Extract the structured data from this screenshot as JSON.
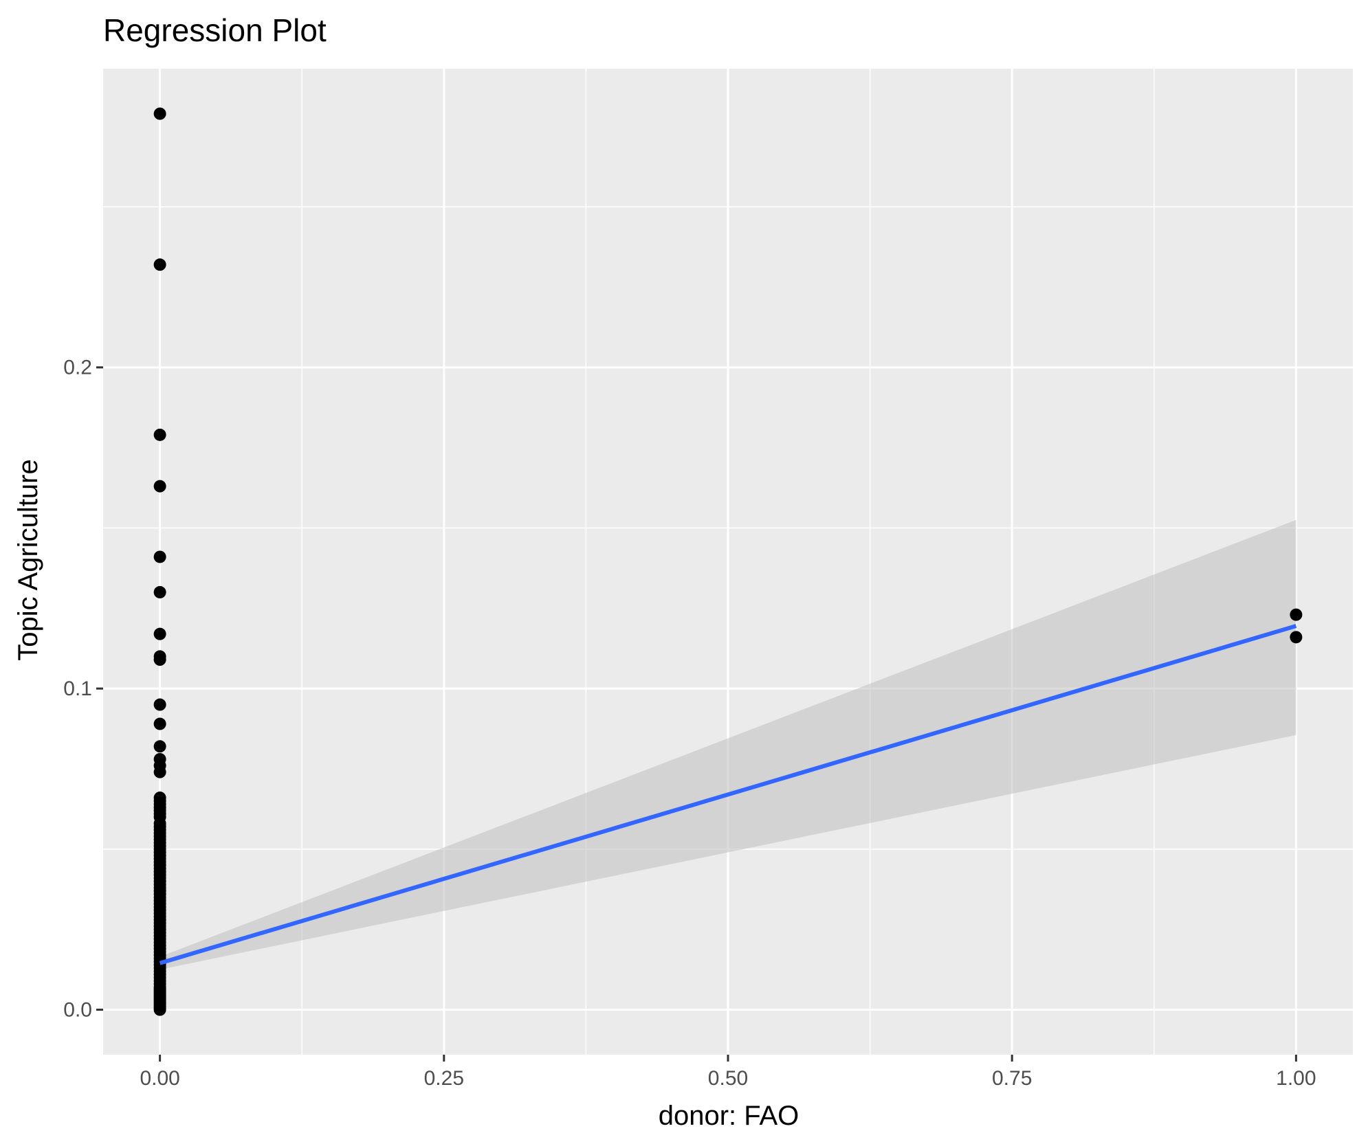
{
  "chart_data": {
    "type": "scatter",
    "title": "Regression Plot",
    "xlabel": "donor: FAO",
    "ylabel": "Topic Agriculture",
    "xlim": [
      -0.05,
      1.05
    ],
    "ylim": [
      -0.014,
      0.293
    ],
    "x_ticks": [
      0.0,
      0.25,
      0.5,
      0.75,
      1.0
    ],
    "x_tick_labels": [
      "0.00",
      "0.25",
      "0.50",
      "0.75",
      "1.00"
    ],
    "y_ticks": [
      0.0,
      0.1,
      0.2
    ],
    "y_tick_labels": [
      "0.0",
      "0.1",
      "0.2"
    ],
    "grid": true,
    "legend": "none",
    "colors": {
      "panel": "#ebebeb",
      "grid": "#ffffff",
      "points": "#000000",
      "line": "#3366ff",
      "band": "#bfbfbf"
    },
    "points": {
      "x": [
        0,
        0,
        0,
        0,
        0,
        0,
        0,
        0,
        0,
        0,
        0,
        0,
        0,
        0,
        0,
        0,
        0,
        0,
        0,
        0,
        0,
        0,
        0,
        0,
        0,
        0,
        0,
        0,
        0,
        0,
        0,
        0,
        0,
        0,
        0,
        0,
        0,
        0,
        0,
        0,
        0,
        0,
        0,
        0,
        0,
        0,
        0,
        0,
        0,
        0,
        0,
        0,
        0,
        0,
        0,
        0,
        0,
        0,
        0,
        0,
        0,
        0,
        0,
        0,
        0,
        0,
        0,
        0,
        0,
        0,
        0,
        0,
        0,
        0,
        0,
        0,
        0,
        0,
        0,
        0,
        0,
        0,
        0,
        0,
        0,
        0,
        0,
        0,
        1,
        1
      ],
      "y": [
        0.279,
        0.232,
        0.179,
        0.163,
        0.141,
        0.13,
        0.117,
        0.11,
        0.109,
        0.095,
        0.089,
        0.082,
        0.078,
        0.076,
        0.074,
        0.066,
        0.065,
        0.064,
        0.063,
        0.062,
        0.061,
        0.06,
        0.058,
        0.057,
        0.056,
        0.055,
        0.054,
        0.053,
        0.052,
        0.051,
        0.05,
        0.049,
        0.048,
        0.047,
        0.046,
        0.045,
        0.044,
        0.043,
        0.042,
        0.041,
        0.04,
        0.039,
        0.038,
        0.037,
        0.036,
        0.035,
        0.034,
        0.033,
        0.032,
        0.031,
        0.03,
        0.029,
        0.028,
        0.027,
        0.026,
        0.025,
        0.024,
        0.023,
        0.022,
        0.021,
        0.02,
        0.019,
        0.018,
        0.017,
        0.016,
        0.015,
        0.014,
        0.013,
        0.012,
        0.011,
        0.01,
        0.009,
        0.008,
        0.007,
        0.006,
        0.005,
        0.004,
        0.003,
        0.002,
        0.001,
        0.0,
        0.0005,
        0.0015,
        0.0025,
        0.0035,
        0.0045,
        0.0055,
        0.0065,
        0.123,
        0.116
      ]
    },
    "regression": {
      "x": [
        0,
        1
      ],
      "y": [
        0.0145,
        0.1195
      ],
      "ci_lower": [
        0.0125,
        0.0855
      ],
      "ci_upper": [
        0.0165,
        0.1525
      ]
    }
  }
}
